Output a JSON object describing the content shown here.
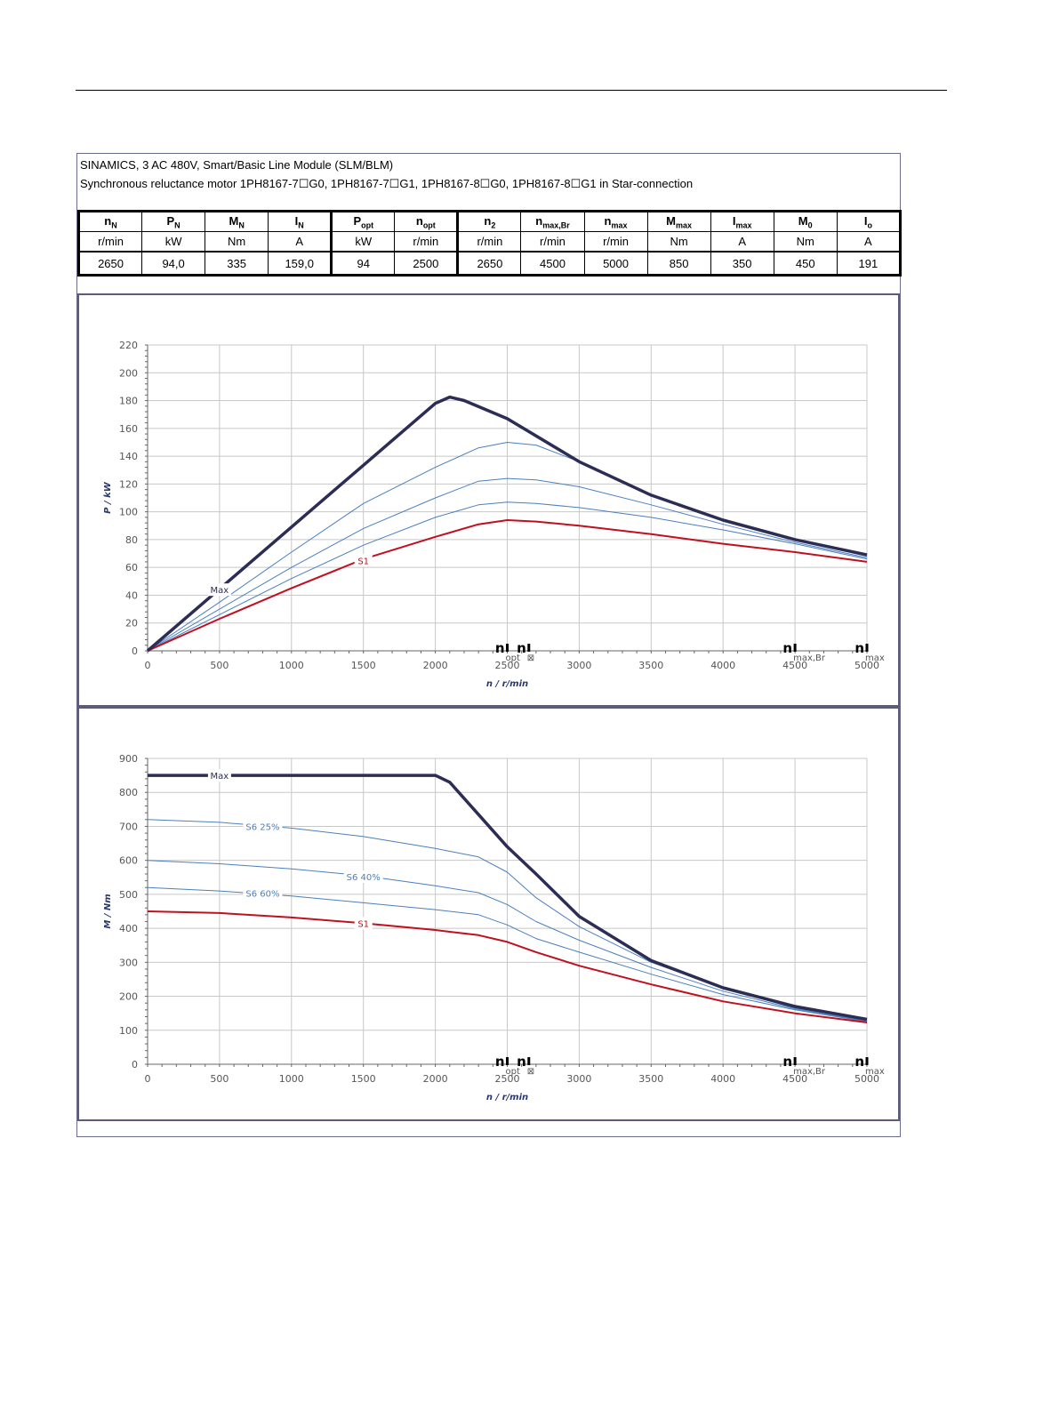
{
  "header": {
    "line1": "SINAMICS, 3 AC 480V, Smart/Basic Line Module (SLM/BLM)",
    "line2": "Synchronous reluctance motor  1PH8167-7☐G0,  1PH8167-7☐G1,  1PH8167-8☐G0,  1PH8167-8☐G1   in Star-connection"
  },
  "specs": {
    "columns": [
      {
        "sym": "n",
        "sub": "N",
        "unit": "r/min",
        "value": "2650"
      },
      {
        "sym": "P",
        "sub": "N",
        "unit": "kW",
        "value": "94,0"
      },
      {
        "sym": "M",
        "sub": "N",
        "unit": "Nm",
        "value": "335"
      },
      {
        "sym": "I",
        "sub": "N",
        "unit": "A",
        "value": "159,0"
      },
      {
        "sym": "P",
        "sub": "opt",
        "unit": "kW",
        "value": "94"
      },
      {
        "sym": "n",
        "sub": "opt",
        "unit": "r/min",
        "value": "2500"
      },
      {
        "sym": "n",
        "sub": "2",
        "unit": "r/min",
        "value": "2650"
      },
      {
        "sym": "n",
        "sub": "max,Br",
        "unit": "r/min",
        "value": "4500"
      },
      {
        "sym": "n",
        "sub": "max",
        "unit": "r/min",
        "value": "5000"
      },
      {
        "sym": "M",
        "sub": "max",
        "unit": "Nm",
        "value": "850"
      },
      {
        "sym": "I",
        "sub": "max",
        "unit": "A",
        "value": "350"
      },
      {
        "sym": "M",
        "sub": "0",
        "unit": "Nm",
        "value": "450"
      },
      {
        "sym": "I",
        "sub": "o",
        "unit": "A",
        "value": "191"
      }
    ]
  },
  "colors": {
    "max": "#2b2d55",
    "s6": "#4a7fbf",
    "s1": "#c0101e",
    "grid": "#c8c8c8"
  },
  "chart_data": [
    {
      "type": "line",
      "ylabel": "P / kW",
      "xlabel": "n / r/min",
      "xlim": [
        0,
        5000
      ],
      "ylim": [
        0,
        220
      ],
      "xticks": [
        0,
        500,
        1000,
        1500,
        2000,
        2500,
        3000,
        3500,
        4000,
        4500,
        5000
      ],
      "yticks": [
        0,
        20,
        40,
        60,
        80,
        100,
        120,
        140,
        160,
        180,
        200,
        220
      ],
      "markers": [
        {
          "x": 2500,
          "label": "n",
          "sub": "opt"
        },
        {
          "x": 2650,
          "label": "n",
          "sub": "⊠"
        },
        {
          "x": 4500,
          "label": "n",
          "sub": "max,Br"
        },
        {
          "x": 5000,
          "label": "n",
          "sub": "max"
        }
      ],
      "series": [
        {
          "name": "Max",
          "style": "max",
          "label_at": [
            500,
            44
          ],
          "x": [
            0,
            500,
            1000,
            1500,
            2000,
            2100,
            2200,
            2500,
            3000,
            3500,
            4000,
            4500,
            5000
          ],
          "values": [
            0,
            44.5,
            89,
            133.5,
            178,
            182.5,
            180,
            167,
            136,
            112,
            94,
            80,
            69
          ]
        },
        {
          "name": "",
          "style": "s6",
          "x": [
            0,
            500,
            1000,
            1500,
            2000,
            2300,
            2500,
            2700,
            3000,
            3500,
            4000,
            4500,
            5000
          ],
          "values": [
            0,
            35,
            71,
            106,
            132,
            146,
            150,
            148,
            136,
            112,
            94,
            80,
            68
          ]
        },
        {
          "name": "",
          "style": "s6",
          "x": [
            0,
            500,
            1000,
            1500,
            2000,
            2300,
            2500,
            2700,
            3000,
            3500,
            4000,
            4500,
            5000
          ],
          "values": [
            0,
            30,
            60,
            88,
            110,
            122,
            124,
            123,
            118,
            105,
            91,
            78,
            67
          ]
        },
        {
          "name": "",
          "style": "s6",
          "x": [
            0,
            500,
            1000,
            1500,
            2000,
            2300,
            2500,
            2700,
            3000,
            3500,
            4000,
            4500,
            5000
          ],
          "values": [
            0,
            26,
            52,
            76,
            96,
            105,
            107,
            106,
            103,
            96,
            87,
            77,
            66
          ]
        },
        {
          "name": "S1",
          "style": "s1",
          "label_at": [
            1500,
            65
          ],
          "x": [
            0,
            500,
            1000,
            1500,
            2000,
            2300,
            2500,
            2700,
            3000,
            3500,
            4000,
            4500,
            5000
          ],
          "values": [
            0,
            23,
            45,
            66,
            82,
            91,
            94,
            93,
            90,
            84,
            77,
            71,
            64
          ]
        }
      ]
    },
    {
      "type": "line",
      "ylabel": "M / Nm",
      "xlabel": "n / r/min",
      "xlim": [
        0,
        5000
      ],
      "ylim": [
        0,
        900
      ],
      "xticks": [
        0,
        500,
        1000,
        1500,
        2000,
        2500,
        3000,
        3500,
        4000,
        4500,
        5000
      ],
      "yticks": [
        0,
        100,
        200,
        300,
        400,
        500,
        600,
        700,
        800,
        900
      ],
      "markers": [
        {
          "x": 2500,
          "label": "n",
          "sub": "opt"
        },
        {
          "x": 2650,
          "label": "n",
          "sub": "⊠"
        },
        {
          "x": 4500,
          "label": "n",
          "sub": "max,Br"
        },
        {
          "x": 5000,
          "label": "n",
          "sub": "max"
        }
      ],
      "series": [
        {
          "name": "Max",
          "style": "max",
          "label_at": [
            500,
            850
          ],
          "x": [
            0,
            500,
            1000,
            1500,
            2000,
            2100,
            2300,
            2500,
            2700,
            3000,
            3500,
            4000,
            4500,
            5000
          ],
          "values": [
            850,
            850,
            850,
            850,
            850,
            830,
            735,
            640,
            560,
            435,
            305,
            225,
            170,
            132
          ]
        },
        {
          "name": "S6 25%",
          "style": "s6",
          "label_at": [
            800,
            700
          ],
          "x": [
            0,
            500,
            1000,
            1500,
            2000,
            2300,
            2500,
            2700,
            3000,
            3500,
            4000,
            4500,
            5000
          ],
          "values": [
            720,
            712,
            695,
            670,
            635,
            610,
            565,
            490,
            405,
            300,
            225,
            165,
            130
          ]
        },
        {
          "name": "S6 40%",
          "style": "s6",
          "label_at": [
            1500,
            552
          ],
          "x": [
            0,
            500,
            1000,
            1500,
            2000,
            2300,
            2500,
            2700,
            3000,
            3500,
            4000,
            4500,
            5000
          ],
          "values": [
            600,
            590,
            575,
            555,
            525,
            505,
            470,
            420,
            365,
            285,
            215,
            163,
            127
          ]
        },
        {
          "name": "S6 60%",
          "style": "s6",
          "label_at": [
            800,
            503
          ],
          "x": [
            0,
            500,
            1000,
            1500,
            2000,
            2300,
            2500,
            2700,
            3000,
            3500,
            4000,
            4500,
            5000
          ],
          "values": [
            520,
            510,
            495,
            475,
            455,
            440,
            410,
            370,
            330,
            265,
            205,
            160,
            125
          ]
        },
        {
          "name": "S1",
          "style": "s1",
          "label_at": [
            1500,
            415
          ],
          "x": [
            0,
            500,
            1000,
            1500,
            2000,
            2300,
            2500,
            2700,
            3000,
            3500,
            4000,
            4500,
            5000
          ],
          "values": [
            450,
            445,
            432,
            415,
            395,
            380,
            360,
            330,
            290,
            235,
            185,
            150,
            123
          ]
        }
      ]
    }
  ]
}
